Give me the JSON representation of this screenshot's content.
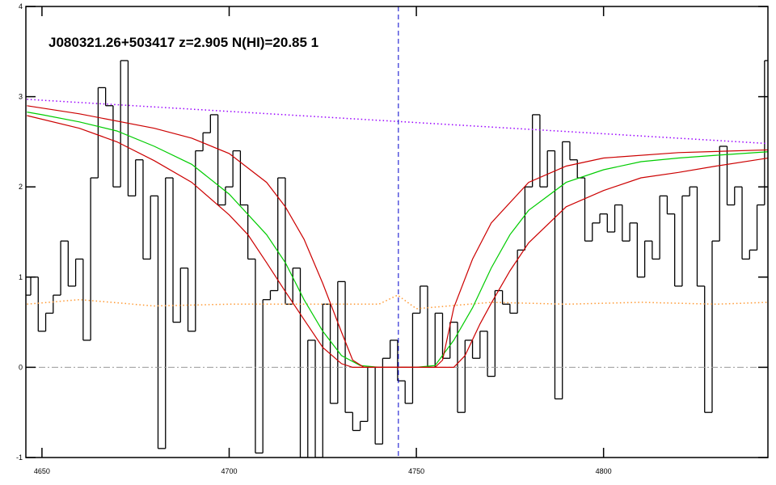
{
  "chart_data": {
    "type": "step",
    "title": "J080321.26+503417 z=2.905 N(HI)=20.85 1",
    "color": "#000000",
    "x": [
      4646,
      4648,
      4650,
      4652,
      4654,
      4656,
      4658,
      4660,
      4662,
      4664,
      4666,
      4668,
      4670,
      4672,
      4674,
      4676,
      4678,
      4680,
      4682,
      4684,
      4686,
      4688,
      4690,
      4692,
      4694,
      4696,
      4698,
      4700,
      4702,
      4704,
      4706,
      4708,
      4710,
      4712,
      4714,
      4716,
      4718,
      4720,
      4722,
      4724,
      4726,
      4728,
      4730,
      4732,
      4734,
      4736,
      4738,
      4740,
      4742,
      4744,
      4746,
      4748,
      4750,
      4752,
      4754,
      4756,
      4758,
      4760,
      4762,
      4764,
      4766,
      4768,
      4770,
      4772,
      4774,
      4776,
      4778,
      4780,
      4782,
      4784,
      4786,
      4788,
      4790,
      4792,
      4794,
      4796,
      4798,
      4800,
      4802,
      4804,
      4806,
      4808,
      4810,
      4812,
      4814,
      4816,
      4818,
      4820,
      4822,
      4824,
      4826,
      4828,
      4830,
      4832,
      4834,
      4836,
      4838,
      4840,
      4842,
      4844
    ],
    "values": [
      0.8,
      1.0,
      0.4,
      0.6,
      0.8,
      1.4,
      0.9,
      1.2,
      0.3,
      2.1,
      3.1,
      2.9,
      2.0,
      3.4,
      1.9,
      2.3,
      1.2,
      1.9,
      -0.9,
      2.1,
      0.5,
      1.1,
      0.4,
      2.4,
      2.6,
      2.8,
      1.8,
      2.0,
      2.4,
      1.8,
      1.2,
      -0.95,
      0.75,
      0.85,
      2.1,
      0.7,
      1.1,
      -1.0,
      0.3,
      -1.0,
      0.7,
      -0.4,
      0.95,
      -0.5,
      -0.7,
      -0.6,
      0.0,
      -0.85,
      0.1,
      0.3,
      -0.15,
      -0.4,
      0.6,
      0.9,
      0.0,
      0.6,
      0.1,
      0.5,
      -0.5,
      0.3,
      0.1,
      0.4,
      -0.1,
      0.85,
      0.7,
      0.6,
      1.3,
      2.0,
      2.8,
      2.0,
      2.4,
      -0.35,
      2.5,
      2.3,
      2.1,
      1.4,
      1.6,
      1.7,
      1.5,
      1.8,
      1.4,
      1.6,
      1.0,
      1.4,
      1.2,
      1.9,
      1.7,
      0.9,
      1.9,
      2.0,
      0.9,
      -0.5,
      1.4,
      2.45,
      1.8,
      2.0,
      1.2,
      1.3,
      1.8,
      3.4
    ],
    "overlays": [
      {
        "type": "line",
        "color": "#9900ff",
        "dash": "dotted",
        "x": [
          4646,
          4844
        ],
        "values": [
          2.97,
          2.48
        ]
      },
      {
        "type": "line",
        "color": "#ff9933",
        "dash": "dotted",
        "x": [
          4646,
          4660,
          4680,
          4700,
          4720,
          4740,
          4745,
          4750,
          4770,
          4790,
          4810,
          4830,
          4844
        ],
        "values": [
          0.7,
          0.75,
          0.68,
          0.7,
          0.7,
          0.7,
          0.8,
          0.65,
          0.72,
          0.7,
          0.72,
          0.7,
          0.72
        ]
      },
      {
        "type": "hline",
        "color": "#999999",
        "dash": "dashdot",
        "value": 0
      },
      {
        "type": "vline",
        "color": "#0000cc",
        "dash": "dashed",
        "value": 4745.2
      },
      {
        "type": "line",
        "color": "#00cc00",
        "dash": "solid",
        "x": [
          4646,
          4650,
          4660,
          4670,
          4680,
          4690,
          4700,
          4710,
          4715,
          4720,
          4725,
          4730,
          4735,
          4740,
          4750,
          4755,
          4760,
          4765,
          4770,
          4775,
          4780,
          4790,
          4800,
          4810,
          4820,
          4830,
          4844
        ],
        "values": [
          2.83,
          2.8,
          2.72,
          2.62,
          2.45,
          2.25,
          1.92,
          1.47,
          1.16,
          0.75,
          0.4,
          0.13,
          0.02,
          0,
          0,
          0.02,
          0.3,
          0.66,
          1.1,
          1.47,
          1.74,
          2.05,
          2.19,
          2.28,
          2.32,
          2.35,
          2.39
        ]
      },
      {
        "type": "line",
        "color": "#cc0000",
        "dash": "solid",
        "x": [
          4646,
          4660,
          4680,
          4690,
          4700,
          4710,
          4715,
          4720,
          4725,
          4730,
          4733,
          4736,
          4755,
          4757,
          4760,
          4765,
          4770,
          4780,
          4790,
          4800,
          4820,
          4844
        ],
        "values": [
          2.9,
          2.81,
          2.65,
          2.54,
          2.37,
          2.05,
          1.78,
          1.42,
          0.93,
          0.39,
          0.08,
          0,
          0,
          0.08,
          0.66,
          1.2,
          1.6,
          2.05,
          2.23,
          2.32,
          2.38,
          2.41
        ]
      },
      {
        "type": "line",
        "color": "#cc0000",
        "dash": "solid",
        "x": [
          4646,
          4660,
          4670,
          4680,
          4690,
          4700,
          4705,
          4710,
          4715,
          4720,
          4725,
          4730,
          4733,
          4760,
          4763,
          4767,
          4770,
          4775,
          4780,
          4790,
          4800,
          4810,
          4820,
          4830,
          4844
        ],
        "values": [
          2.79,
          2.65,
          2.5,
          2.29,
          2.05,
          1.69,
          1.47,
          1.16,
          0.84,
          0.53,
          0.22,
          0.04,
          0,
          0,
          0.13,
          0.48,
          0.71,
          1.07,
          1.38,
          1.78,
          1.96,
          2.1,
          2.16,
          2.23,
          2.32
        ]
      }
    ],
    "xlim": [
      4645.7,
      4843.9
    ],
    "ylim": [
      -1,
      4
    ],
    "xticks": [
      4650,
      4700,
      4750,
      4800
    ],
    "yticks": [
      -1,
      0,
      1,
      2,
      3,
      4
    ]
  }
}
